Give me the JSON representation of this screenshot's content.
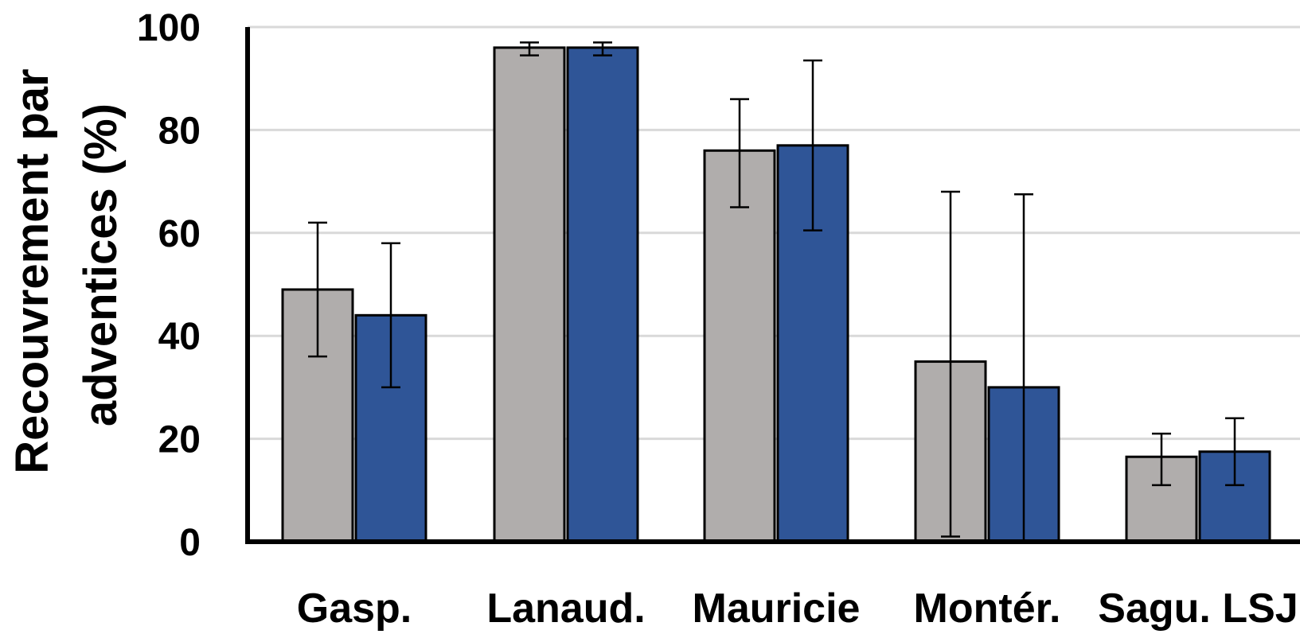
{
  "chart_data": {
    "type": "bar",
    "categories": [
      "Gasp.",
      "Lanaud.",
      "Mauricie",
      "Montér.",
      "Sagu. LSJ"
    ],
    "ylabel_lines": [
      "Recouvrement par",
      "adventices (%)"
    ],
    "xlabel": "",
    "ylim": [
      0,
      100
    ],
    "yticks": [
      "0",
      "20",
      "40",
      "60",
      "80",
      "100"
    ],
    "grid": true,
    "legend": "none",
    "series": [
      {
        "color": "#b0adac",
        "values": [
          49,
          96,
          76,
          35,
          16.5
        ],
        "err_low": [
          36,
          94.5,
          65,
          1,
          11
        ],
        "err_high": [
          62,
          97,
          86,
          68,
          21
        ]
      },
      {
        "color": "#2f5597",
        "values": [
          44,
          96,
          77,
          30,
          17.5
        ],
        "err_low": [
          30,
          94.5,
          60.5,
          0,
          11
        ],
        "err_high": [
          58,
          97,
          93.5,
          67.5,
          24
        ]
      }
    ]
  }
}
